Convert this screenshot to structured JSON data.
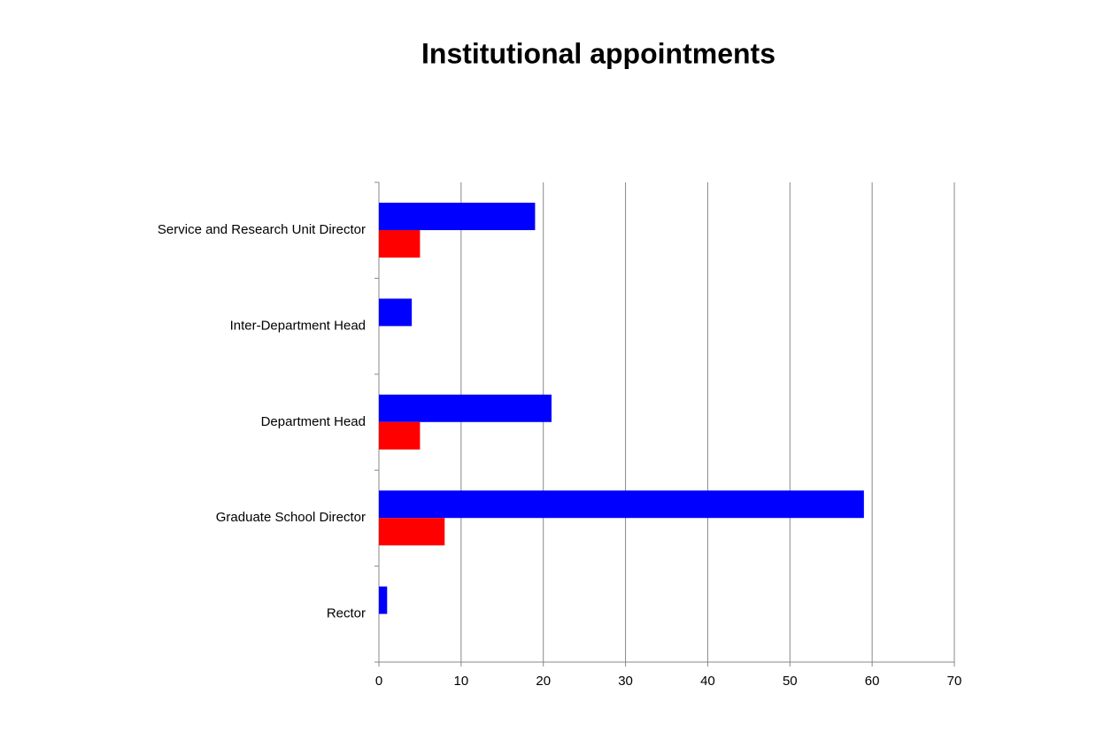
{
  "chart_data": {
    "type": "hbar",
    "title": "Institutional appointments",
    "categories": [
      "Service and Research Unit Director",
      "Inter-Department Head",
      "Department Head",
      "Graduate School Director",
      "Rector"
    ],
    "series": [
      {
        "color": "#0000ff",
        "values": [
          19,
          4,
          21,
          59,
          1
        ]
      },
      {
        "color": "#ff0000",
        "values": [
          5,
          0,
          5,
          8,
          0
        ]
      }
    ],
    "xlim": [
      0,
      70
    ],
    "xticks": [
      0,
      10,
      20,
      30,
      40,
      50,
      60,
      70
    ],
    "grid": true
  }
}
